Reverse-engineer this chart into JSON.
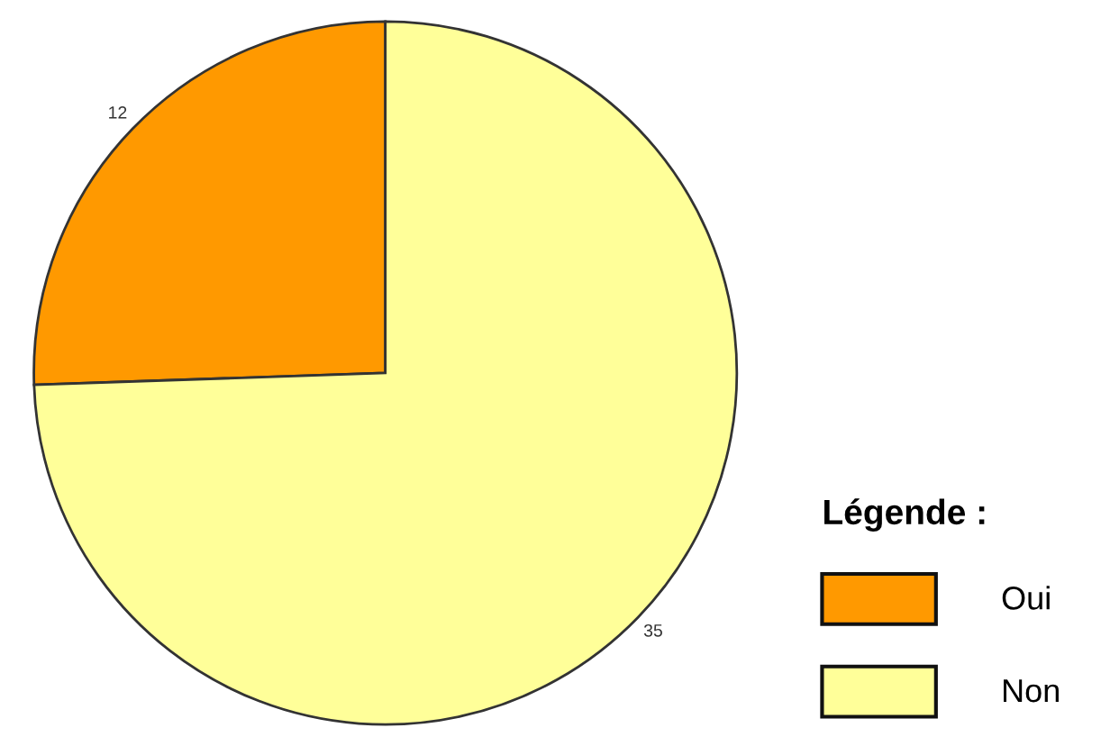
{
  "chart_data": {
    "type": "pie",
    "categories": [
      "Oui",
      "Non"
    ],
    "values": [
      12,
      35
    ],
    "colors": [
      "#ff9900",
      "#ffff99"
    ],
    "legend_title": "Légende :",
    "legend": "bottom right",
    "data_labels": true
  }
}
